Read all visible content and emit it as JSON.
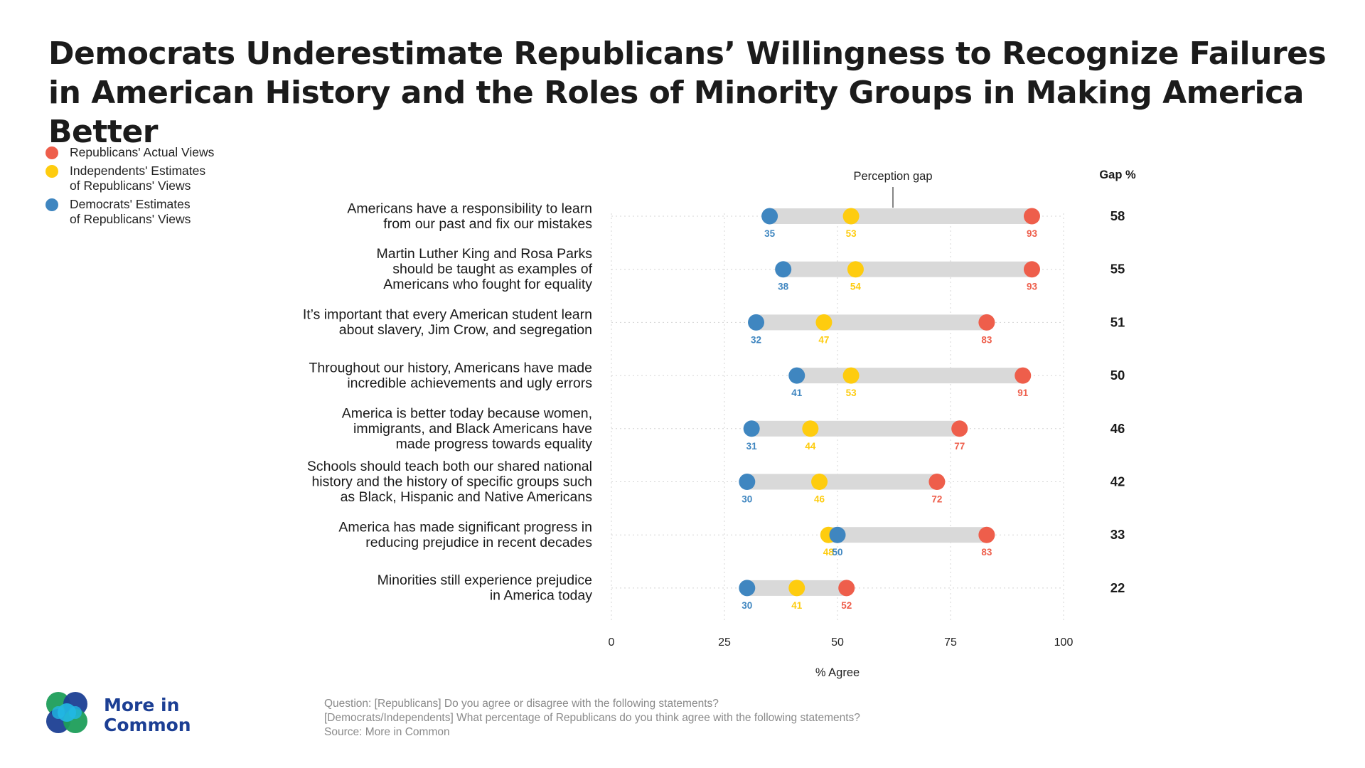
{
  "title": "Democrats Underestimate Republicans’ Willingness to Recognize Failures in American History and the Roles of Minority Groups in Making America Better",
  "legend": [
    {
      "label": "Republicans' Actual Views",
      "color": "#ee5e4b"
    },
    {
      "label": "Independents' Estimates\nof Republicans' Views",
      "color": "#fecc0f"
    },
    {
      "label": "Democrats' Estimates\nof Republicans' Views",
      "color": "#3f86c0"
    }
  ],
  "gap_header": "Gap %",
  "annotation": "Perception gap",
  "footnote": {
    "line1": "Question: [Republicans] Do you agree or disagree with the following statements?",
    "line2": "[Democrats/Independents] What percentage of Republicans do you think agree with the following statements?",
    "line3": "Source: More in Common"
  },
  "logo": {
    "line1": "More in",
    "line2": "Common"
  },
  "colors": {
    "republicans": "#ee5e4b",
    "independents": "#fecc0f",
    "democrats": "#3f86c0",
    "bar": "#d9d9d9"
  },
  "chart_data": {
    "type": "dumbbell",
    "xlabel": "% Agree",
    "xlim": [
      0,
      100
    ],
    "xticks": [
      0,
      25,
      50,
      75,
      100
    ],
    "grid": "vertical dotted",
    "series": [
      {
        "name": "Republicans' Actual Views",
        "key": "rep"
      },
      {
        "name": "Independents' Estimates of Republicans' Views",
        "key": "ind"
      },
      {
        "name": "Democrats' Estimates of Republicans' Views",
        "key": "dem"
      }
    ],
    "rows": [
      {
        "label": [
          "Americans have a responsibility to learn",
          "from our past and fix our mistakes"
        ],
        "dem": 35,
        "ind": 53,
        "rep": 93,
        "gap": 58
      },
      {
        "label": [
          "Martin Luther King and Rosa Parks",
          "should be taught as examples of",
          "Americans who fought for equality"
        ],
        "dem": 38,
        "ind": 54,
        "rep": 93,
        "gap": 55
      },
      {
        "label": [
          "It’s important that every American student learn",
          "about slavery, Jim Crow, and segregation"
        ],
        "dem": 32,
        "ind": 47,
        "rep": 83,
        "gap": 51
      },
      {
        "label": [
          "Throughout our history, Americans have made",
          "incredible achievements and ugly errors"
        ],
        "dem": 41,
        "ind": 53,
        "rep": 91,
        "gap": 50
      },
      {
        "label": [
          "America is better today because women,",
          "immigrants, and Black Americans have",
          "made progress towards equality"
        ],
        "dem": 31,
        "ind": 44,
        "rep": 77,
        "gap": 46
      },
      {
        "label": [
          "Schools should teach both our shared national",
          "history and the history of specific groups such",
          "as Black, Hispanic and Native Americans"
        ],
        "dem": 30,
        "ind": 46,
        "rep": 72,
        "gap": 42
      },
      {
        "label": [
          "America has made significant progress in",
          "reducing prejudice in recent decades"
        ],
        "dem": 50,
        "ind": 48,
        "rep": 83,
        "gap": 33
      },
      {
        "label": [
          "Minorities still experience prejudice",
          "in America today"
        ],
        "dem": 30,
        "ind": 41,
        "rep": 52,
        "gap": 22
      }
    ]
  }
}
